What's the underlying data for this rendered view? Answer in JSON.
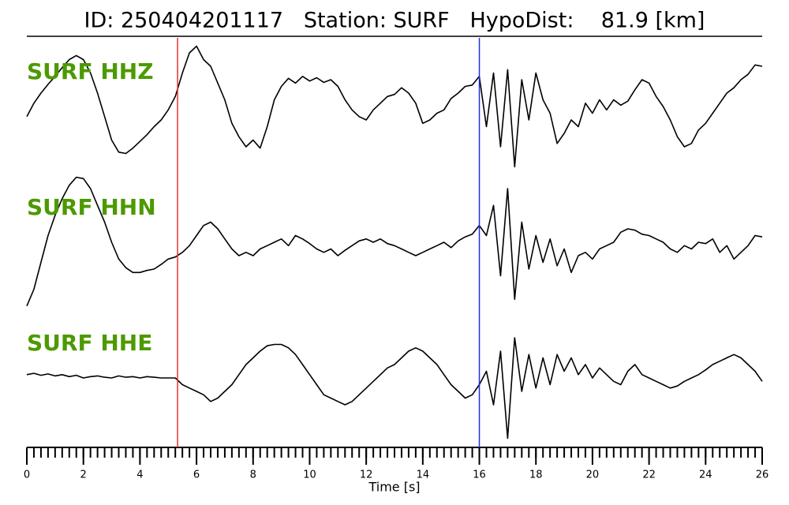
{
  "chart_data": {
    "type": "line",
    "title": "ID: 250404201117   Station: SURF   HypoDist:    81.9 [km]",
    "xlabel": "Time [s]",
    "xlim": [
      0,
      26
    ],
    "xticks": [
      0,
      2,
      4,
      6,
      8,
      10,
      12,
      14,
      16,
      18,
      20,
      22,
      24,
      26
    ],
    "xminor_ticks": [
      0,
      0.25,
      0.5,
      0.75,
      1,
      1.25,
      1.5,
      1.75,
      2,
      2.25,
      2.5,
      2.75,
      3,
      3.25,
      3.5,
      3.75,
      4,
      4.25,
      4.5,
      4.75,
      5,
      5.25,
      5.5,
      5.75,
      6,
      6.25,
      6.5,
      6.75,
      7,
      7.25,
      7.5,
      7.75,
      8,
      8.25,
      8.5,
      8.75,
      9,
      9.25,
      9.5,
      9.75,
      10,
      10.25,
      10.5,
      10.75,
      11,
      11.25,
      11.5,
      11.75,
      12,
      12.25,
      12.5,
      12.75,
      13,
      13.25,
      13.5,
      13.75,
      14,
      14.25,
      14.5,
      14.75,
      15,
      15.25,
      15.5,
      15.75,
      16,
      16.25,
      16.5,
      16.75,
      17,
      17.25,
      17.5,
      17.75,
      18,
      18.25,
      18.5,
      18.75,
      19,
      19.25,
      19.5,
      19.75,
      20,
      20.25,
      20.5,
      20.75,
      21,
      21.25,
      21.5,
      21.75,
      22,
      22.25,
      22.5,
      22.75,
      23,
      23.25,
      23.5,
      23.75,
      24,
      24.25,
      24.5,
      24.75,
      25,
      25.25,
      25.5,
      25.75,
      26
    ],
    "ylim": [
      -1,
      1
    ],
    "label_color": "#4c9a00",
    "markers": [
      {
        "x": 5.33,
        "color": "#e8302a"
      },
      {
        "x": 16,
        "color": "#2030e0"
      }
    ],
    "x": [
      0,
      0.25,
      0.5,
      0.75,
      1,
      1.25,
      1.5,
      1.75,
      2,
      2.25,
      2.5,
      2.75,
      3,
      3.25,
      3.5,
      3.75,
      4,
      4.25,
      4.5,
      4.75,
      5,
      5.25,
      5.5,
      5.75,
      6,
      6.25,
      6.5,
      6.75,
      7,
      7.25,
      7.5,
      7.75,
      8,
      8.25,
      8.5,
      8.75,
      9,
      9.25,
      9.5,
      9.75,
      10,
      10.25,
      10.5,
      10.75,
      11,
      11.25,
      11.5,
      11.75,
      12,
      12.25,
      12.5,
      12.75,
      13,
      13.25,
      13.5,
      13.75,
      14,
      14.25,
      14.5,
      14.75,
      15,
      15.25,
      15.5,
      15.75,
      16,
      16.25,
      16.5,
      16.75,
      17,
      17.25,
      17.5,
      17.75,
      18,
      18.25,
      18.5,
      18.75,
      19,
      19.25,
      19.5,
      19.75,
      20,
      20.25,
      20.5,
      20.75,
      21,
      21.25,
      21.5,
      21.75,
      22,
      22.25,
      22.5,
      22.75,
      23,
      23.25,
      23.5,
      23.75,
      24,
      24.25,
      24.5,
      24.75,
      25,
      25.25,
      25.5,
      25.75,
      26
    ],
    "series": [
      {
        "name": "SURF HHZ",
        "color": "#000000",
        "values": [
          -0.15,
          0.05,
          0.2,
          0.33,
          0.45,
          0.58,
          0.7,
          0.76,
          0.7,
          0.5,
          0.2,
          -0.15,
          -0.5,
          -0.68,
          -0.7,
          -0.62,
          -0.52,
          -0.42,
          -0.3,
          -0.2,
          -0.05,
          0.15,
          0.5,
          0.8,
          0.9,
          0.7,
          0.6,
          0.35,
          0.1,
          -0.25,
          -0.45,
          -0.6,
          -0.5,
          -0.62,
          -0.3,
          0.1,
          0.3,
          0.42,
          0.35,
          0.45,
          0.38,
          0.43,
          0.36,
          0.4,
          0.3,
          0.1,
          -0.05,
          -0.15,
          -0.2,
          -0.05,
          0.05,
          0.15,
          0.18,
          0.28,
          0.2,
          0.05,
          -0.25,
          -0.2,
          -0.1,
          -0.05,
          0.12,
          0.2,
          0.3,
          0.32,
          0.45,
          -0.3,
          0.5,
          -0.6,
          0.55,
          -0.9,
          0.4,
          -0.2,
          0.5,
          0.1,
          -0.1,
          -0.55,
          -0.4,
          -0.2,
          -0.3,
          0.05,
          -0.1,
          0.1,
          -0.05,
          0.1,
          0.02,
          0.08,
          0.25,
          0.4,
          0.35,
          0.15,
          0.0,
          -0.2,
          -0.45,
          -0.6,
          -0.55,
          -0.35,
          -0.25,
          -0.1,
          0.05,
          0.2,
          0.28,
          0.4,
          0.48,
          0.62,
          0.6
        ]
      },
      {
        "name": "SURF HHN",
        "color": "#000000",
        "values": [
          -0.95,
          -0.7,
          -0.3,
          0.1,
          0.4,
          0.65,
          0.85,
          0.97,
          0.95,
          0.8,
          0.55,
          0.3,
          0.0,
          -0.25,
          -0.38,
          -0.45,
          -0.45,
          -0.42,
          -0.4,
          -0.33,
          -0.25,
          -0.22,
          -0.15,
          -0.05,
          0.1,
          0.25,
          0.3,
          0.2,
          0.05,
          -0.1,
          -0.2,
          -0.15,
          -0.2,
          -0.1,
          -0.05,
          0.0,
          0.05,
          -0.05,
          0.1,
          0.05,
          -0.02,
          -0.1,
          -0.15,
          -0.1,
          -0.2,
          -0.12,
          -0.05,
          0.02,
          0.05,
          0.0,
          0.05,
          -0.02,
          -0.05,
          -0.1,
          -0.15,
          -0.2,
          -0.15,
          -0.1,
          -0.05,
          0.0,
          -0.08,
          0.02,
          0.08,
          0.12,
          0.25,
          0.1,
          0.55,
          -0.5,
          0.8,
          -0.85,
          0.3,
          -0.4,
          0.1,
          -0.3,
          0.05,
          -0.35,
          -0.1,
          -0.45,
          -0.2,
          -0.15,
          -0.25,
          -0.1,
          -0.05,
          0.0,
          0.15,
          0.2,
          0.18,
          0.12,
          0.1,
          0.05,
          0.0,
          -0.1,
          -0.15,
          -0.05,
          -0.1,
          0.0,
          -0.02,
          0.05,
          -0.15,
          -0.05,
          -0.25,
          -0.15,
          -0.05,
          0.1,
          0.08
        ]
      },
      {
        "name": "SURF HHE",
        "color": "#000000",
        "values": [
          0.05,
          0.07,
          0.04,
          0.06,
          0.03,
          0.05,
          0.02,
          0.04,
          0.0,
          0.02,
          0.03,
          0.01,
          0.0,
          0.03,
          0.01,
          0.02,
          0.0,
          0.02,
          0.01,
          0.0,
          0.0,
          0.0,
          -0.1,
          -0.15,
          -0.2,
          -0.25,
          -0.35,
          -0.3,
          -0.2,
          -0.1,
          0.05,
          0.2,
          0.3,
          0.4,
          0.48,
          0.5,
          0.5,
          0.45,
          0.35,
          0.2,
          0.05,
          -0.1,
          -0.25,
          -0.3,
          -0.35,
          -0.4,
          -0.35,
          -0.25,
          -0.15,
          -0.05,
          0.05,
          0.15,
          0.2,
          0.3,
          0.4,
          0.45,
          0.4,
          0.3,
          0.2,
          0.05,
          -0.1,
          -0.2,
          -0.3,
          -0.25,
          -0.1,
          0.1,
          -0.4,
          0.4,
          -0.9,
          0.6,
          -0.2,
          0.35,
          -0.15,
          0.3,
          -0.1,
          0.35,
          0.1,
          0.3,
          0.05,
          0.2,
          0.0,
          0.15,
          0.05,
          -0.05,
          -0.1,
          0.1,
          0.2,
          0.05,
          0.0,
          -0.05,
          -0.1,
          -0.15,
          -0.12,
          -0.05,
          0.0,
          0.05,
          0.12,
          0.2,
          0.25,
          0.3,
          0.35,
          0.3,
          0.2,
          0.1,
          -0.05
        ]
      }
    ]
  }
}
